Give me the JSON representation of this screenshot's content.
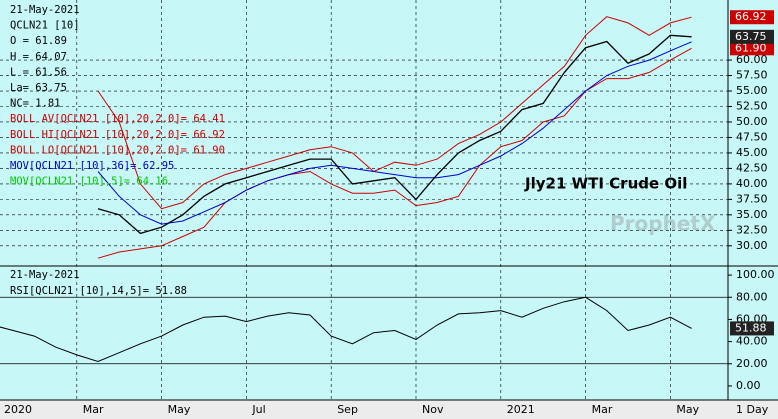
{
  "chart_data": {
    "type": "line",
    "annotation": "Jly21 WTI Crude Oil",
    "watermark": "ProphetX",
    "interval_label": "1 Day",
    "categories": [
      "2020",
      null,
      null,
      null,
      "Mar",
      null,
      null,
      null,
      "May",
      null,
      null,
      null,
      "Jul",
      null,
      null,
      null,
      "Sep",
      null,
      null,
      null,
      "Nov",
      null,
      null,
      null,
      "2021",
      null,
      null,
      null,
      "Mar",
      null,
      null,
      null,
      "May",
      null
    ],
    "legend_text": [
      {
        "text": "21-May-2021",
        "color": "#000000"
      },
      {
        "text": "QCLN21 [10]",
        "color": "#000000"
      },
      {
        "text": "O = 61.89",
        "color": "#000000"
      },
      {
        "text": "H = 64.07",
        "color": "#000000"
      },
      {
        "text": "L = 61.56",
        "color": "#000000"
      },
      {
        "text": "La= 63.75",
        "color": "#000000"
      },
      {
        "text": "NC= 1.81",
        "color": "#000000"
      },
      {
        "text": "BOLL AV[QCLN21 [10],20,2.0]= 64.41",
        "color": "#cc0000"
      },
      {
        "text": "BOLL HI[QCLN21 [10],20,2.0]= 66.92",
        "color": "#cc0000"
      },
      {
        "text": "BOLL LO[QCLN21 [10],20,2.0]= 61.90",
        "color": "#cc0000"
      },
      {
        "text": "MOV[QCLN21 [10],36]= 62.95",
        "color": "#0000cc"
      },
      {
        "text": "MOV[QCLN21 [10],5]= 64.16",
        "color": "#00cc00"
      }
    ],
    "ylim": [
      26.9,
      69.7
    ],
    "yticks": [
      {
        "value": 30,
        "label": "30.00"
      },
      {
        "value": 32.5,
        "label": "32.50"
      },
      {
        "value": 35,
        "label": "35.00"
      },
      {
        "value": 37.5,
        "label": "37.50"
      },
      {
        "value": 40,
        "label": "40.00"
      },
      {
        "value": 42.5,
        "label": "42.50"
      },
      {
        "value": 45,
        "label": "45.00"
      },
      {
        "value": 47.5,
        "label": "47.50"
      },
      {
        "value": 50,
        "label": "50.00"
      },
      {
        "value": 52.5,
        "label": "52.50"
      },
      {
        "value": 55,
        "label": "55.00"
      },
      {
        "value": 57.5,
        "label": "57.50"
      },
      {
        "value": 60,
        "label": "60.00"
      }
    ],
    "grid": true,
    "series": [
      {
        "color": "#cc0000",
        "values": [
          null,
          null,
          null,
          null,
          null,
          55,
          50,
          40,
          36,
          37,
          40,
          41.5,
          42.5,
          43.5,
          44.5,
          45.5,
          46,
          45,
          42,
          43.5,
          43,
          44,
          46.5,
          48,
          50,
          53,
          56,
          59,
          64,
          67,
          66,
          64,
          66,
          66.92
        ],
        "value_labels": [
          null,
          null,
          null,
          null,
          null,
          null,
          null,
          null,
          null,
          null,
          null,
          null,
          null,
          null,
          null,
          null,
          null,
          null,
          null,
          null,
          null,
          null,
          null,
          null,
          null,
          null,
          null,
          null,
          null,
          null,
          null,
          null,
          null,
          "66.92"
        ]
      },
      {
        "color": "#cc0000",
        "values": [
          null,
          null,
          null,
          null,
          null,
          28,
          29,
          29.5,
          30,
          31.5,
          33,
          37,
          39,
          40.5,
          41.5,
          42,
          40,
          38.5,
          38.5,
          39,
          36.5,
          37,
          38,
          43,
          46,
          47,
          50,
          51,
          55,
          57,
          57,
          58,
          60,
          61.9
        ],
        "value_labels": [
          null,
          null,
          null,
          null,
          null,
          null,
          null,
          null,
          null,
          null,
          null,
          null,
          null,
          null,
          null,
          null,
          null,
          null,
          null,
          null,
          null,
          null,
          null,
          null,
          null,
          null,
          null,
          null,
          null,
          null,
          null,
          null,
          null,
          "61.90"
        ]
      },
      {
        "color": "#0000cc",
        "values": [
          null,
          null,
          null,
          null,
          null,
          42,
          38,
          35,
          33.5,
          34,
          35.5,
          37,
          39,
          40.5,
          41.5,
          42.5,
          43,
          42.5,
          42,
          41.5,
          41,
          41,
          41.5,
          43,
          44.5,
          46.5,
          49,
          52,
          55,
          57.5,
          59,
          60,
          61.5,
          62.95
        ]
      },
      {
        "color": "#000000",
        "values": [
          null,
          null,
          null,
          null,
          null,
          36,
          35,
          32,
          33,
          35,
          38,
          40,
          41,
          42,
          43,
          44,
          44,
          40,
          40.5,
          41,
          37.5,
          41.5,
          45,
          47,
          48.5,
          52,
          53,
          58,
          62,
          63,
          59.5,
          61,
          64,
          63.75
        ],
        "value_labels": [
          null,
          null,
          null,
          null,
          null,
          null,
          null,
          null,
          null,
          null,
          null,
          null,
          null,
          null,
          null,
          null,
          null,
          null,
          null,
          null,
          null,
          null,
          null,
          null,
          null,
          null,
          null,
          null,
          null,
          null,
          null,
          null,
          null,
          "63.75"
        ]
      }
    ],
    "rsi": {
      "legend": [
        "21-May-2021",
        "RSI[QCLN21 [10],14,5]= 51.88"
      ],
      "color": "#000000",
      "ylim": [
        -12.7,
        106.4
      ],
      "yticks": [
        {
          "value": 0,
          "label": "0.00"
        },
        {
          "value": 20,
          "label": "20.00"
        },
        {
          "value": 40,
          "label": "40.00"
        },
        {
          "value": 60,
          "label": "60.00"
        },
        {
          "value": 80,
          "label": "80.00"
        },
        {
          "value": 100,
          "label": "100.00"
        }
      ],
      "levels": [
        80,
        20
      ],
      "values": [
        55,
        50,
        45,
        35,
        28,
        22,
        30,
        38,
        45,
        55,
        62,
        63,
        58,
        63,
        66,
        64,
        45,
        38,
        48,
        50,
        42,
        55,
        65,
        66,
        68,
        62,
        70,
        76,
        80,
        68,
        50,
        55,
        62,
        51.88
      ]
    }
  }
}
